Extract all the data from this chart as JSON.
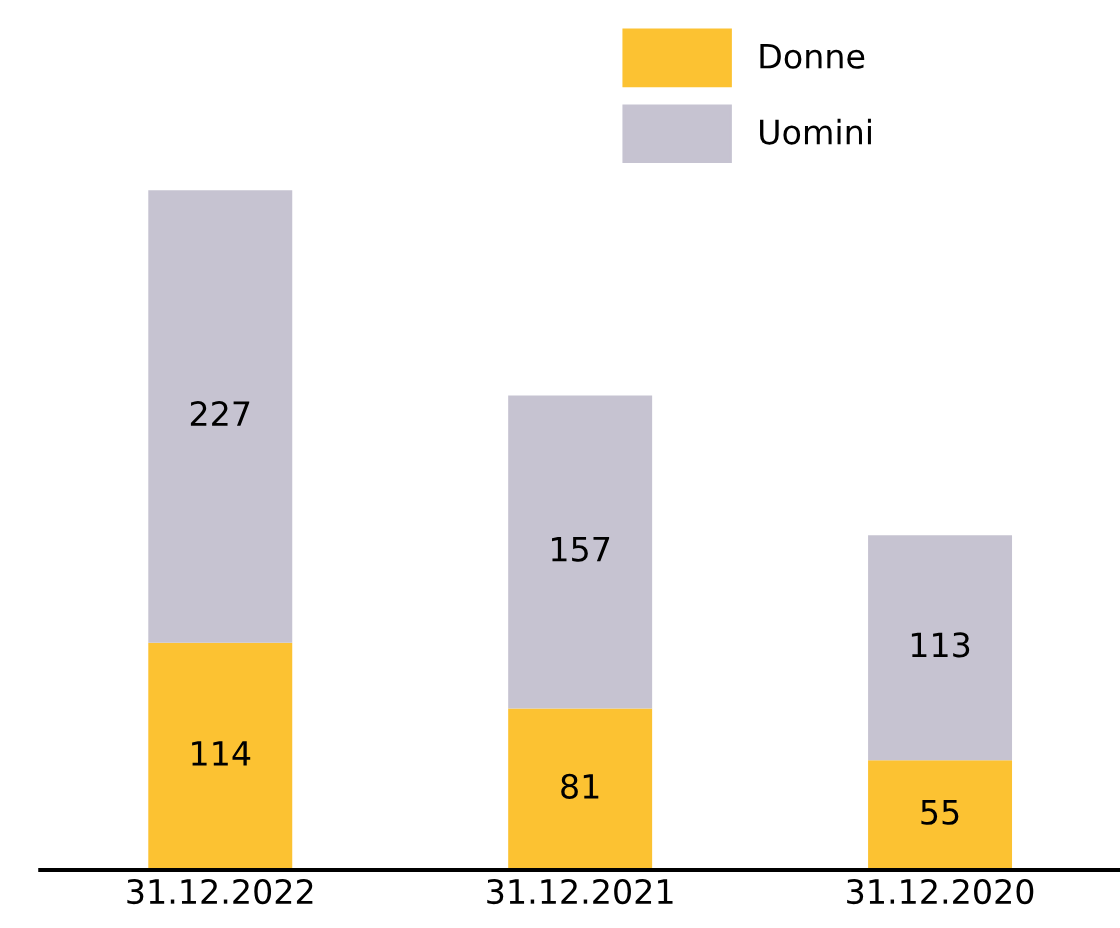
{
  "chart_data": {
    "type": "bar",
    "stacked": true,
    "categories": [
      "31.12.2022",
      "31.12.2021",
      "31.12.2020"
    ],
    "series": [
      {
        "name": "Donne",
        "color": "#fcc232",
        "values": [
          114,
          81,
          55
        ]
      },
      {
        "name": "Uomini",
        "color": "#c6c3d1",
        "values": [
          227,
          157,
          113
        ]
      }
    ],
    "data_labels": true,
    "legend": "top right",
    "grid": false
  }
}
